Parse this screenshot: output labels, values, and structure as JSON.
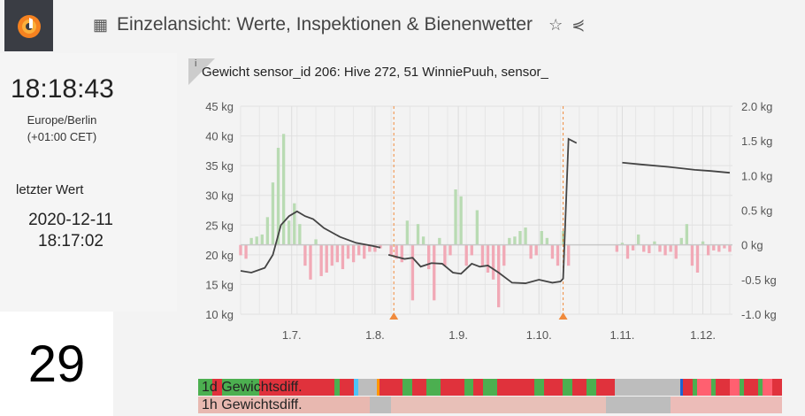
{
  "header": {
    "title": "Einzelansicht: Werte, Inspektionen & Bienenwetter",
    "icons": [
      "dashboard-grid-icon",
      "star-icon",
      "share-icon"
    ]
  },
  "clock": {
    "time": "18:18:43",
    "timezone": "Europe/Berlin",
    "offset": "(+01:00 CET)"
  },
  "last_value": {
    "label": "letzter Wert",
    "date": "2020-12-11",
    "time": "18:17:02"
  },
  "overlay_number": "29",
  "panel": {
    "info": "i",
    "title": "Gewicht sensor_id 206: Hive 272, 51 WinniePuuh, sensor_"
  },
  "chart_data": {
    "type": "line",
    "title": "Gewicht sensor_id 206: Hive 272, 51 WinniePuuh, sensor_",
    "x_unit": "days since 1.7.",
    "xlim": [
      -19,
      164
    ],
    "x_ticks": [
      {
        "day": 0,
        "label": "1.7."
      },
      {
        "day": 31,
        "label": "1.8."
      },
      {
        "day": 62,
        "label": "1.9."
      },
      {
        "day": 92,
        "label": "1.10."
      },
      {
        "day": 123,
        "label": "1.11."
      },
      {
        "day": 153,
        "label": "1.12."
      }
    ],
    "y_left": {
      "lim": [
        10,
        45
      ],
      "ticks": [
        "10 kg",
        "15 kg",
        "20 kg",
        "25 kg",
        "30 kg",
        "35 kg",
        "40 kg",
        "45 kg"
      ]
    },
    "y_right": {
      "lim": [
        -1,
        2
      ],
      "ticks": [
        "-1.0 kg",
        "-0.5 kg",
        "0 kg",
        "0.5 kg",
        "1.0 kg",
        "1.5 kg",
        "2.0 kg"
      ]
    },
    "annotations_days": [
      38,
      101
    ],
    "weight_series": {
      "name": "Gewicht",
      "color": "#444444",
      "segments": [
        [
          [
            -19,
            17.3
          ],
          [
            -15,
            17
          ],
          [
            -10,
            17.8
          ],
          [
            -7,
            20
          ],
          [
            -4,
            25
          ],
          [
            -1,
            26.5
          ],
          [
            2,
            27.3
          ],
          [
            5,
            26.5
          ],
          [
            8,
            26
          ],
          [
            12,
            24.5
          ],
          [
            18,
            23
          ],
          [
            24,
            22
          ],
          [
            30,
            21.5
          ],
          [
            33,
            21.2
          ]
        ],
        [
          [
            36,
            20
          ],
          [
            42,
            19.3
          ],
          [
            45,
            19.5
          ],
          [
            48,
            18
          ],
          [
            52,
            18.6
          ],
          [
            56,
            18.5
          ],
          [
            60,
            17
          ],
          [
            63,
            16.8
          ],
          [
            67,
            18.5
          ],
          [
            70,
            18
          ],
          [
            73,
            18.2
          ],
          [
            77,
            17
          ],
          [
            82,
            15.3
          ],
          [
            87,
            15.2
          ],
          [
            92,
            15.8
          ],
          [
            97,
            15.3
          ],
          [
            100,
            15.5
          ],
          [
            101,
            16
          ],
          [
            103,
            39.5
          ],
          [
            106,
            38.8
          ]
        ],
        [
          [
            123,
            35.5
          ],
          [
            130,
            35.2
          ],
          [
            140,
            34.8
          ],
          [
            150,
            34.3
          ],
          [
            156,
            34.1
          ],
          [
            163,
            33.8
          ]
        ]
      ]
    },
    "diff_series": {
      "name": "Gewichtsdiff.",
      "start_day": -19,
      "step_days": 2,
      "pos_color": "#b9dbb3",
      "neg_color": "#f1a9b6",
      "values": [
        -0.15,
        -0.2,
        0.1,
        0.12,
        0.15,
        0.4,
        0.9,
        1.4,
        1.6,
        0.35,
        0.6,
        0.3,
        -0.3,
        -0.5,
        0.08,
        -0.45,
        -0.4,
        -0.3,
        -0.25,
        -0.35,
        -0.2,
        -0.25,
        -0.15,
        -0.2,
        -0.1,
        -0.1,
        -0.05,
        null,
        -0.15,
        -0.2,
        -0.25,
        0.35,
        -0.8,
        0.3,
        0.12,
        -0.35,
        -0.8,
        0.1,
        -0.3,
        -0.15,
        0.8,
        0.7,
        -0.3,
        -0.15,
        0.5,
        -0.3,
        -0.4,
        -0.5,
        -0.9,
        -0.3,
        0.1,
        0.12,
        0.2,
        0.25,
        -0.2,
        -0.15,
        0.2,
        0.1,
        -0.2,
        -0.3,
        0.2,
        -0.3,
        null,
        null,
        null,
        null,
        null,
        null,
        null,
        null,
        -0.1,
        0.03,
        -0.2,
        -0.08,
        0.15,
        -0.1,
        -0.12,
        0.05,
        -0.1,
        -0.15,
        -0.1,
        -0.2,
        0.1,
        0.3,
        -0.3,
        -0.4,
        0.05,
        -0.15,
        -0.08,
        -0.1,
        -0.05,
        -0.1
      ]
    }
  },
  "status_rows": [
    {
      "label": "1d Gewichtsdiff.",
      "segments": [
        [
          "#4caf50",
          3
        ],
        [
          "#e0323c",
          2
        ],
        [
          "#4caf50",
          8
        ],
        [
          "#e0323c",
          12
        ],
        [
          "#e0323c",
          4
        ],
        [
          "#4caf50",
          1
        ],
        [
          "#e0323c",
          3
        ],
        [
          "#4fc3f7",
          1
        ],
        [
          "#bdbdbd",
          4
        ],
        [
          "#ff9800",
          0.5
        ],
        [
          "#e0323c",
          5
        ],
        [
          "#4caf50",
          2
        ],
        [
          "#e0323c",
          3
        ],
        [
          "#4caf50",
          3
        ],
        [
          "#e0323c",
          5
        ],
        [
          "#4caf50",
          2
        ],
        [
          "#e0323c",
          2
        ],
        [
          "#4caf50",
          3
        ],
        [
          "#e0323c",
          8
        ],
        [
          "#4caf50",
          2
        ],
        [
          "#e0323c",
          4
        ],
        [
          "#4caf50",
          2
        ],
        [
          "#e0323c",
          3
        ],
        [
          "#4caf50",
          2
        ],
        [
          "#e0323c",
          4
        ],
        [
          "#bdbdbd",
          14
        ],
        [
          "#1e63d0",
          0.5
        ],
        [
          "#e0323c",
          2
        ],
        [
          "#4caf50",
          1
        ],
        [
          "#ff6070",
          3
        ],
        [
          "#4caf50",
          1
        ],
        [
          "#e0323c",
          3
        ],
        [
          "#ff6070",
          2
        ],
        [
          "#4caf50",
          1
        ],
        [
          "#e0323c",
          3
        ],
        [
          "#4caf50",
          1
        ],
        [
          "#ff6070",
          2
        ],
        [
          "#e0323c",
          2
        ]
      ]
    },
    {
      "label": "1h Gewichtsdiff.",
      "segments": [
        [
          "#e8b8b0",
          40
        ],
        [
          "#bdbdbd",
          5
        ],
        [
          "#e8c0b8",
          50
        ],
        [
          "#bdbdbd",
          15
        ],
        [
          "#ecbcb8",
          26
        ]
      ]
    }
  ]
}
